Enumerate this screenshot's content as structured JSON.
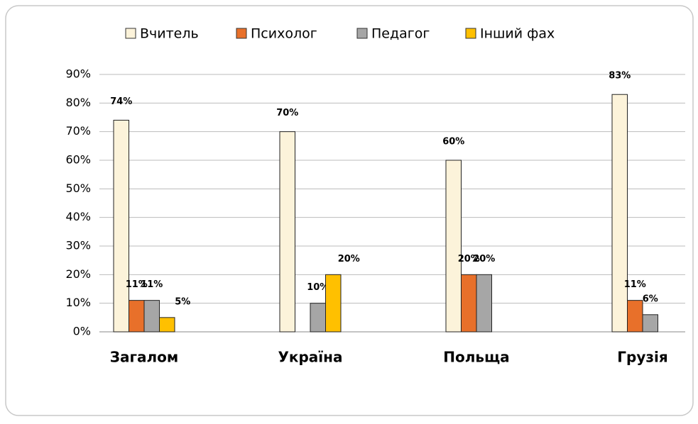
{
  "chart_data": {
    "type": "bar",
    "categories": [
      "Загалом",
      "Україна",
      "Польща",
      "Грузія"
    ],
    "series": [
      {
        "name": "Вчитель",
        "color": "#fcf3da",
        "values": [
          74,
          70,
          60,
          83
        ],
        "value_labels": [
          "74%",
          "70%",
          "60%",
          "83%"
        ]
      },
      {
        "name": "Психолог",
        "color": "#e8702a",
        "values": [
          11,
          null,
          20,
          11
        ],
        "value_labels": [
          "11%",
          null,
          "20%",
          "11%"
        ]
      },
      {
        "name": "Педагог",
        "color": "#a6a6a6",
        "values": [
          11,
          10,
          20,
          6
        ],
        "value_labels": [
          "11%",
          "10%",
          "20%",
          "6%"
        ]
      },
      {
        "name": "Інший фах",
        "color": "#ffc000",
        "values": [
          5,
          20,
          null,
          null
        ],
        "value_labels": [
          "5%",
          "20%",
          null,
          null
        ]
      }
    ],
    "ylim": [
      0,
      90
    ],
    "yticks": [
      {
        "value": 0,
        "label": "0%"
      },
      {
        "value": 10,
        "label": "10%"
      },
      {
        "value": 20,
        "label": "20%"
      },
      {
        "value": 30,
        "label": "30%"
      },
      {
        "value": 40,
        "label": "40%"
      },
      {
        "value": 50,
        "label": "50%"
      },
      {
        "value": 60,
        "label": "60%"
      },
      {
        "value": 70,
        "label": "70%"
      },
      {
        "value": 80,
        "label": "80%"
      },
      {
        "value": 90,
        "label": "90%"
      }
    ],
    "grid": true,
    "legend": "top"
  }
}
